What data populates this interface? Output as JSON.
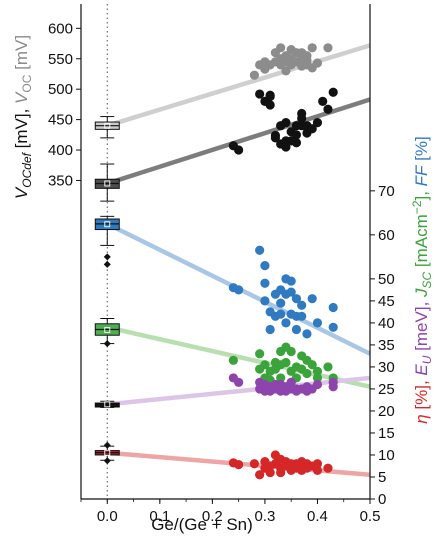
{
  "chart_data": {
    "type": "scatter",
    "xlabel": "Ge/(Ge + Sn)",
    "xlim": [
      -0.05,
      0.5
    ],
    "xticks": [
      "0.0",
      "0.1",
      "0.2",
      "0.3",
      "0.4",
      "0.5"
    ],
    "vertical_reference_line_x": 0.0,
    "left_axis": {
      "label_parts": [
        {
          "text": "V",
          "color": "#111111",
          "italic": true
        },
        {
          "text": "OCdef",
          "color": "#111111",
          "italic": true,
          "sub": true
        },
        {
          "text": " [mV], ",
          "color": "#111111"
        },
        {
          "text": "V",
          "color": "#8a8a8a",
          "italic": true
        },
        {
          "text": "OC",
          "color": "#8a8a8a",
          "italic": false,
          "sub": true
        },
        {
          "text": " [mV]",
          "color": "#8a8a8a"
        }
      ],
      "ylim": [
        285,
        640
      ],
      "ticks": [
        "350",
        "400",
        "450",
        "500",
        "550",
        "600"
      ]
    },
    "right_axis": {
      "label_parts": [
        {
          "text": "η",
          "color": "#d62728",
          "italic": true
        },
        {
          "text": " [%], ",
          "color": "#d62728"
        },
        {
          "text": "E",
          "color": "#8e44ad",
          "italic": true
        },
        {
          "text": "U",
          "color": "#8e44ad",
          "italic": true,
          "sub": true
        },
        {
          "text": " [meV], ",
          "color": "#8e44ad"
        },
        {
          "text": "J",
          "color": "#3aa33a",
          "italic": true
        },
        {
          "text": "SC",
          "color": "#3aa33a",
          "italic": true,
          "sub": true
        },
        {
          "text": " [mAcm",
          "color": "#3aa33a"
        },
        {
          "text": "−2",
          "color": "#3aa33a",
          "sup": true
        },
        {
          "text": "], ",
          "color": "#3aa33a"
        },
        {
          "text": "FF",
          "color": "#2f7ac1",
          "italic": true
        },
        {
          "text": " [%]",
          "color": "#2f7ac1"
        }
      ],
      "ylim": [
        0,
        77
      ],
      "ticks": [
        "0",
        "5",
        "10",
        "15",
        "20",
        "25",
        "30",
        "35",
        "40",
        "45",
        "50",
        "60",
        "70"
      ]
    },
    "series": [
      {
        "name": "V_OC",
        "axis": "left",
        "color": "#8c8c8c",
        "fit_color": "#cfcfcf",
        "fit": [
          [
            0.0,
            440
          ],
          [
            0.5,
            572
          ]
        ],
        "box": {
          "q1": 434,
          "q3": 446,
          "median": 440,
          "mean": 440,
          "whisker_low": 420,
          "whisker_high": 455,
          "fill": "#cccccc"
        },
        "points": [
          [
            0.28,
            523
          ],
          [
            0.29,
            540
          ],
          [
            0.3,
            533
          ],
          [
            0.3,
            545
          ],
          [
            0.31,
            540
          ],
          [
            0.32,
            545
          ],
          [
            0.32,
            560
          ],
          [
            0.33,
            550
          ],
          [
            0.33,
            568
          ],
          [
            0.33,
            540
          ],
          [
            0.34,
            530
          ],
          [
            0.34,
            555
          ],
          [
            0.34,
            545
          ],
          [
            0.35,
            565
          ],
          [
            0.35,
            550
          ],
          [
            0.35,
            540
          ],
          [
            0.36,
            545
          ],
          [
            0.36,
            560
          ],
          [
            0.37,
            560
          ],
          [
            0.37,
            550
          ],
          [
            0.37,
            538
          ],
          [
            0.38,
            555
          ],
          [
            0.38,
            548
          ],
          [
            0.38,
            540
          ],
          [
            0.39,
            535
          ],
          [
            0.39,
            568
          ],
          [
            0.4,
            543
          ],
          [
            0.42,
            568
          ]
        ]
      },
      {
        "name": "V_OCdef",
        "axis": "left",
        "color": "#111111",
        "fit_color": "#7d7d7d",
        "fit": [
          [
            0.0,
            345
          ],
          [
            0.5,
            483
          ]
        ],
        "box": {
          "q1": 337,
          "q3": 352,
          "median": 345,
          "mean": 345,
          "whisker_low": 316,
          "whisker_high": 377,
          "fill": "#4d4d4d"
        },
        "points": [
          [
            0.24,
            407
          ],
          [
            0.25,
            400
          ],
          [
            0.29,
            492
          ],
          [
            0.3,
            480
          ],
          [
            0.31,
            474
          ],
          [
            0.31,
            490
          ],
          [
            0.31,
            488
          ],
          [
            0.32,
            424
          ],
          [
            0.32,
            420
          ],
          [
            0.33,
            410
          ],
          [
            0.33,
            440
          ],
          [
            0.34,
            415
          ],
          [
            0.34,
            405
          ],
          [
            0.34,
            445
          ],
          [
            0.35,
            430
          ],
          [
            0.35,
            415
          ],
          [
            0.36,
            440
          ],
          [
            0.36,
            412
          ],
          [
            0.36,
            425
          ],
          [
            0.37,
            460
          ],
          [
            0.37,
            452
          ],
          [
            0.37,
            440
          ],
          [
            0.38,
            440
          ],
          [
            0.38,
            428
          ],
          [
            0.39,
            435
          ],
          [
            0.4,
            445
          ],
          [
            0.41,
            480
          ],
          [
            0.42,
            467
          ],
          [
            0.43,
            495
          ]
        ]
      },
      {
        "name": "FF",
        "axis": "right",
        "color": "#2f7ac1",
        "fit_color": "#a9c7e4",
        "fit": [
          [
            0.0,
            62.5
          ],
          [
            0.5,
            33.0
          ]
        ],
        "box": {
          "q1": 61.2,
          "q3": 63.6,
          "median": 62.5,
          "mean": 62.4,
          "whisker_low": 57.6,
          "whisker_high": 64.2,
          "fill": "#2f7ac1"
        },
        "outliers": [
          [
            0.0,
            53.3
          ],
          [
            0.0,
            55.0
          ]
        ],
        "points": [
          [
            0.24,
            48.0
          ],
          [
            0.25,
            47.5
          ],
          [
            0.29,
            56.5
          ],
          [
            0.3,
            53.0
          ],
          [
            0.3,
            49.0
          ],
          [
            0.3,
            45.0
          ],
          [
            0.31,
            42.5
          ],
          [
            0.31,
            38.5
          ],
          [
            0.32,
            46.5
          ],
          [
            0.32,
            41.5
          ],
          [
            0.33,
            47.5
          ],
          [
            0.33,
            44.5
          ],
          [
            0.33,
            42.0
          ],
          [
            0.34,
            50.0
          ],
          [
            0.34,
            46.5
          ],
          [
            0.34,
            40.0
          ],
          [
            0.35,
            49.5
          ],
          [
            0.35,
            47.0
          ],
          [
            0.35,
            42.0
          ],
          [
            0.36,
            45.5
          ],
          [
            0.36,
            41.5
          ],
          [
            0.36,
            38.5
          ],
          [
            0.37,
            44.0
          ],
          [
            0.37,
            41.5
          ],
          [
            0.38,
            37.5
          ],
          [
            0.39,
            45.5
          ],
          [
            0.4,
            40.0
          ],
          [
            0.43,
            43.5
          ],
          [
            0.43,
            39.0
          ]
        ]
      },
      {
        "name": "J_SC",
        "axis": "right",
        "color": "#3aa33a",
        "fit_color": "#b9deb0",
        "fit": [
          [
            0.0,
            39.0
          ],
          [
            0.5,
            25.5
          ]
        ],
        "box": {
          "q1": 37.2,
          "q3": 39.8,
          "median": 38.5,
          "mean": 38.4,
          "whisker_low": 35.3,
          "whisker_high": 41.0,
          "fill": "#4caf50"
        },
        "outliers": [
          [
            0.0,
            35.3
          ]
        ],
        "points": [
          [
            0.24,
            31.5
          ],
          [
            0.29,
            33.0
          ],
          [
            0.29,
            29.5
          ],
          [
            0.3,
            27.5
          ],
          [
            0.3,
            30.5
          ],
          [
            0.31,
            29.0
          ],
          [
            0.31,
            27.0
          ],
          [
            0.32,
            31.0
          ],
          [
            0.32,
            29.5
          ],
          [
            0.33,
            33.5
          ],
          [
            0.33,
            30.5
          ],
          [
            0.33,
            27.5
          ],
          [
            0.34,
            34.5
          ],
          [
            0.34,
            31.0
          ],
          [
            0.35,
            29.0
          ],
          [
            0.35,
            33.5
          ],
          [
            0.35,
            26.5
          ],
          [
            0.36,
            30.0
          ],
          [
            0.36,
            27.5
          ],
          [
            0.37,
            32.5
          ],
          [
            0.37,
            29.5
          ],
          [
            0.38,
            31.5
          ],
          [
            0.38,
            28.5
          ],
          [
            0.39,
            30.5
          ],
          [
            0.4,
            27.5
          ],
          [
            0.4,
            29.0
          ],
          [
            0.42,
            30.0
          ],
          [
            0.43,
            27.5
          ]
        ]
      },
      {
        "name": "E_U",
        "axis": "right",
        "color": "#8e44ad",
        "fit_color": "#dcc5e6",
        "fit": [
          [
            0.0,
            21.5
          ],
          [
            0.5,
            27.5
          ]
        ],
        "box": {
          "q1": 21.2,
          "q3": 21.8,
          "median": 21.5,
          "mean": 21.5,
          "whisker_low": 20.8,
          "whisker_high": 22.2,
          "fill": "#111111"
        },
        "points": [
          [
            0.24,
            27.5
          ],
          [
            0.25,
            26.5
          ],
          [
            0.29,
            26.5
          ],
          [
            0.29,
            25.0
          ],
          [
            0.3,
            24.5
          ],
          [
            0.3,
            26.0
          ],
          [
            0.31,
            25.5
          ],
          [
            0.31,
            24.5
          ],
          [
            0.32,
            26.0
          ],
          [
            0.32,
            25.0
          ],
          [
            0.33,
            26.0
          ],
          [
            0.33,
            24.5
          ],
          [
            0.34,
            25.5
          ],
          [
            0.34,
            24.5
          ],
          [
            0.35,
            26.5
          ],
          [
            0.35,
            25.0
          ],
          [
            0.36,
            25.0
          ],
          [
            0.36,
            24.5
          ],
          [
            0.37,
            25.0
          ],
          [
            0.38,
            25.5
          ],
          [
            0.38,
            24.5
          ],
          [
            0.39,
            25.0
          ],
          [
            0.4,
            26.0
          ],
          [
            0.43,
            25.5
          ],
          [
            0.43,
            26.5
          ]
        ]
      },
      {
        "name": "η",
        "axis": "right",
        "color": "#d62728",
        "fit_color": "#eda5a5",
        "fit": [
          [
            0.0,
            10.5
          ],
          [
            0.5,
            5.5
          ]
        ],
        "box": {
          "q1": 10.0,
          "q3": 11.0,
          "median": 10.5,
          "mean": 10.5,
          "whisker_low": 8.8,
          "whisker_high": 12.0,
          "fill": "#b3242a"
        },
        "outliers": [
          [
            0.0,
            12.2
          ],
          [
            0.0,
            8.7
          ]
        ],
        "points": [
          [
            0.24,
            8.2
          ],
          [
            0.25,
            7.8
          ],
          [
            0.28,
            8.0
          ],
          [
            0.29,
            5.5
          ],
          [
            0.3,
            7.0
          ],
          [
            0.3,
            8.5
          ],
          [
            0.31,
            6.0
          ],
          [
            0.31,
            7.5
          ],
          [
            0.32,
            10.0
          ],
          [
            0.32,
            8.0
          ],
          [
            0.33,
            7.0
          ],
          [
            0.33,
            9.0
          ],
          [
            0.33,
            6.0
          ],
          [
            0.34,
            8.5
          ],
          [
            0.34,
            7.5
          ],
          [
            0.35,
            8.0
          ],
          [
            0.35,
            6.5
          ],
          [
            0.36,
            8.0
          ],
          [
            0.36,
            7.0
          ],
          [
            0.37,
            8.5
          ],
          [
            0.37,
            6.5
          ],
          [
            0.38,
            7.0
          ],
          [
            0.38,
            8.0
          ],
          [
            0.39,
            7.5
          ],
          [
            0.4,
            6.5
          ],
          [
            0.4,
            8.0
          ],
          [
            0.42,
            7.0
          ]
        ]
      }
    ]
  }
}
